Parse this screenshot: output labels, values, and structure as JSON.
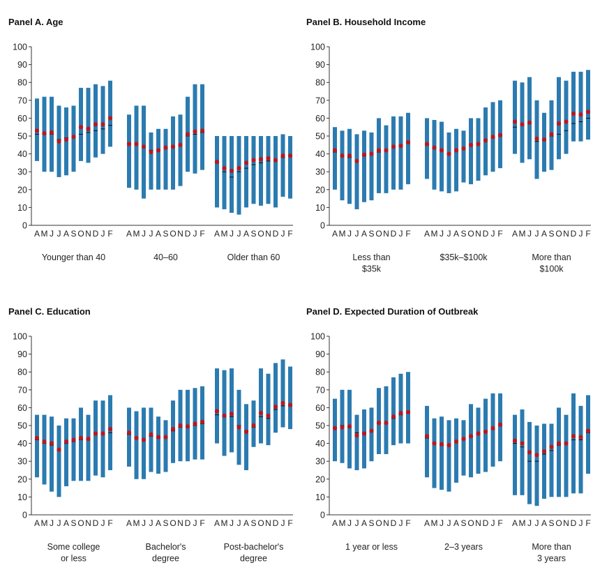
{
  "chart_data": [
    {
      "type": "box-range",
      "title": "Panel A. Age",
      "ylim": [
        0,
        100
      ],
      "yticks": [
        0,
        10,
        20,
        30,
        40,
        50,
        60,
        70,
        80,
        90,
        100
      ],
      "month_labels": [
        "A",
        "M",
        "J",
        "J",
        "A",
        "S",
        "O",
        "N",
        "D",
        "J",
        "F"
      ],
      "colors": {
        "bar": "#2b7bb0",
        "dot": "#c0161c",
        "median": "#111111",
        "axis": "#333333"
      },
      "groups": [
        {
          "label": [
            "Younger than 40"
          ],
          "low": [
            36,
            30,
            30,
            27,
            28,
            30,
            36,
            35,
            38,
            40,
            44
          ],
          "high": [
            71,
            72,
            72,
            67,
            66,
            67,
            77,
            77,
            79,
            78,
            81
          ],
          "median": [
            51,
            51,
            51,
            48,
            49,
            50,
            51,
            52,
            53,
            54,
            56
          ],
          "mean": [
            53,
            51.5,
            52,
            47,
            48,
            49.5,
            55,
            54,
            56.5,
            56.5,
            60
          ]
        },
        {
          "label": [
            "40–60"
          ],
          "low": [
            21,
            20,
            15,
            20,
            20,
            20,
            20,
            22,
            30,
            29,
            31
          ],
          "high": [
            62,
            67,
            67,
            52,
            54,
            54,
            61,
            62,
            72,
            79,
            79
          ],
          "median": [
            46,
            46,
            44,
            42,
            42,
            43,
            44,
            45,
            50,
            51,
            52
          ],
          "mean": [
            45.5,
            45.5,
            44,
            41,
            42,
            43.5,
            44,
            45,
            51,
            52.5,
            53
          ]
        },
        {
          "label": [
            "Older than 60"
          ],
          "low": [
            10,
            9,
            7,
            6,
            10,
            12,
            11,
            12,
            10,
            16,
            15
          ],
          "high": [
            50,
            50,
            50,
            50,
            50,
            50,
            50,
            50,
            50,
            51,
            50
          ],
          "median": [
            35,
            30,
            27,
            30,
            32,
            34,
            35,
            36,
            36,
            38,
            39
          ],
          "mean": [
            35.5,
            32,
            30.5,
            32,
            35,
            36.5,
            37,
            37.5,
            36.5,
            39,
            39
          ]
        }
      ]
    },
    {
      "type": "box-range",
      "title": "Panel B. Household Income",
      "ylim": [
        0,
        100
      ],
      "yticks": [
        0,
        10,
        20,
        30,
        40,
        50,
        60,
        70,
        80,
        90,
        100
      ],
      "month_labels": [
        "A",
        "M",
        "J",
        "J",
        "A",
        "S",
        "O",
        "N",
        "D",
        "J",
        "F"
      ],
      "colors": {
        "bar": "#2b7bb0",
        "dot": "#c0161c",
        "median": "#111111",
        "axis": "#333333"
      },
      "groups": [
        {
          "label": [
            "Less than",
            "$35k"
          ],
          "low": [
            20,
            14,
            12,
            9,
            13,
            14,
            18,
            18,
            20,
            20,
            23
          ],
          "high": [
            55,
            53,
            54,
            51,
            53,
            52,
            60,
            56,
            61,
            61,
            63
          ],
          "median": [
            41,
            39,
            38,
            36,
            39,
            40,
            41,
            42,
            44,
            45,
            46
          ],
          "mean": [
            42,
            39,
            39,
            36,
            39.5,
            40,
            42,
            42,
            44,
            44.5,
            46.5
          ]
        },
        {
          "label": [
            "$35k–$100k"
          ],
          "low": [
            26,
            20,
            19,
            18,
            19,
            24,
            23,
            25,
            28,
            30,
            32
          ],
          "high": [
            60,
            59,
            58,
            52,
            54,
            53,
            60,
            60,
            66,
            69,
            70
          ],
          "median": [
            45,
            43,
            42,
            40,
            42,
            43,
            45,
            46,
            48,
            49,
            50
          ],
          "mean": [
            45.5,
            43.5,
            42,
            40,
            42,
            43,
            45,
            45.5,
            47.5,
            49.5,
            50.5
          ]
        },
        {
          "label": [
            "More than",
            "$100k"
          ],
          "low": [
            40,
            35,
            37,
            26,
            30,
            31,
            37,
            40,
            47,
            47,
            48
          ],
          "high": [
            81,
            80,
            83,
            70,
            63,
            70,
            83,
            81,
            86,
            86,
            87
          ],
          "median": [
            55,
            56,
            57,
            47,
            48,
            50,
            51,
            53,
            57,
            58,
            60
          ],
          "mean": [
            58,
            56.5,
            57.5,
            48.5,
            48,
            51,
            57,
            58,
            62.5,
            62,
            63.5
          ]
        }
      ]
    },
    {
      "type": "box-range",
      "title": "Panel C. Education",
      "ylim": [
        0,
        100
      ],
      "yticks": [
        0,
        10,
        20,
        30,
        40,
        50,
        60,
        70,
        80,
        90,
        100
      ],
      "month_labels": [
        "A",
        "M",
        "J",
        "J",
        "A",
        "S",
        "O",
        "N",
        "D",
        "J",
        "F"
      ],
      "colors": {
        "bar": "#2b7bb0",
        "dot": "#c0161c",
        "median": "#111111",
        "axis": "#333333"
      },
      "groups": [
        {
          "label": [
            "Some college",
            "or less"
          ],
          "low": [
            21,
            17,
            13,
            10,
            16,
            19,
            19,
            19,
            22,
            21,
            25
          ],
          "high": [
            56,
            56,
            55,
            50,
            54,
            54,
            60,
            56,
            64,
            64,
            67
          ],
          "median": [
            42,
            40,
            39,
            36,
            40,
            41,
            42,
            42,
            45,
            45,
            46
          ],
          "mean": [
            43,
            41,
            40,
            36.5,
            41,
            42,
            43,
            42.5,
            45.5,
            45.5,
            48
          ]
        },
        {
          "label": [
            "Bachelor's",
            "degree"
          ],
          "low": [
            27,
            20,
            20,
            24,
            23,
            24,
            29,
            30,
            30,
            31,
            31
          ],
          "high": [
            60,
            58,
            60,
            60,
            55,
            53,
            64,
            70,
            70,
            71,
            72
          ],
          "median": [
            45,
            43,
            42,
            44,
            43,
            43,
            47,
            49,
            49,
            50,
            51
          ],
          "mean": [
            46,
            43,
            42,
            45,
            43.5,
            43.5,
            48,
            50,
            49.5,
            51,
            52
          ]
        },
        {
          "label": [
            "Post-bachelor's",
            "degree"
          ],
          "low": [
            40,
            33,
            35,
            28,
            25,
            38,
            40,
            39,
            46,
            49,
            48
          ],
          "high": [
            82,
            81,
            82,
            70,
            62,
            64,
            82,
            79,
            85,
            87,
            83
          ],
          "median": [
            56,
            55,
            55,
            50,
            47,
            49,
            55,
            54,
            59,
            61,
            61
          ],
          "mean": [
            58,
            55.5,
            56.5,
            49,
            46.5,
            50,
            57,
            55.5,
            60.5,
            62.5,
            61.5
          ]
        }
      ]
    },
    {
      "type": "box-range",
      "title": "Panel D. Expected Duration of Outbreak",
      "ylim": [
        0,
        100
      ],
      "yticks": [
        0,
        10,
        20,
        30,
        40,
        50,
        60,
        70,
        80,
        90,
        100
      ],
      "month_labels": [
        "A",
        "M",
        "J",
        "J",
        "A",
        "S",
        "O",
        "N",
        "D",
        "J",
        "F"
      ],
      "colors": {
        "bar": "#2b7bb0",
        "dot": "#c0161c",
        "median": "#111111",
        "axis": "#333333"
      },
      "groups": [
        {
          "label": [
            "1 year or less"
          ],
          "low": [
            30,
            29,
            26,
            25,
            26,
            30,
            34,
            34,
            39,
            40,
            40
          ],
          "high": [
            65,
            70,
            70,
            56,
            59,
            60,
            71,
            72,
            77,
            79,
            80
          ],
          "median": [
            49,
            50,
            49,
            46,
            46,
            47,
            51,
            51,
            54,
            56,
            57
          ],
          "mean": [
            48.5,
            49,
            49.5,
            44.5,
            45.5,
            47,
            51.5,
            51.5,
            55,
            57,
            57.5
          ]
        },
        {
          "label": [
            "2–3 years"
          ],
          "low": [
            21,
            15,
            14,
            13,
            18,
            22,
            21,
            23,
            24,
            27,
            30
          ],
          "high": [
            61,
            54,
            55,
            53,
            54,
            53,
            62,
            60,
            65,
            68,
            68
          ],
          "median": [
            43,
            40,
            39,
            39,
            41,
            42,
            44,
            45,
            47,
            48,
            50
          ],
          "mean": [
            44,
            40,
            39.5,
            39,
            41,
            42.5,
            44,
            45.5,
            46.5,
            48.5,
            50.5
          ]
        },
        {
          "label": [
            "More than",
            "3 years"
          ],
          "low": [
            11,
            11,
            6,
            5,
            9,
            10,
            10,
            10,
            12,
            12,
            23
          ],
          "high": [
            56,
            59,
            52,
            50,
            51,
            51,
            60,
            56,
            68,
            61,
            67
          ],
          "median": [
            40,
            38,
            30,
            30,
            34,
            36,
            39,
            40,
            42,
            42,
            46
          ],
          "mean": [
            41.5,
            40,
            35,
            33.5,
            35.5,
            38,
            40,
            40,
            44,
            43.5,
            47
          ]
        }
      ]
    }
  ]
}
